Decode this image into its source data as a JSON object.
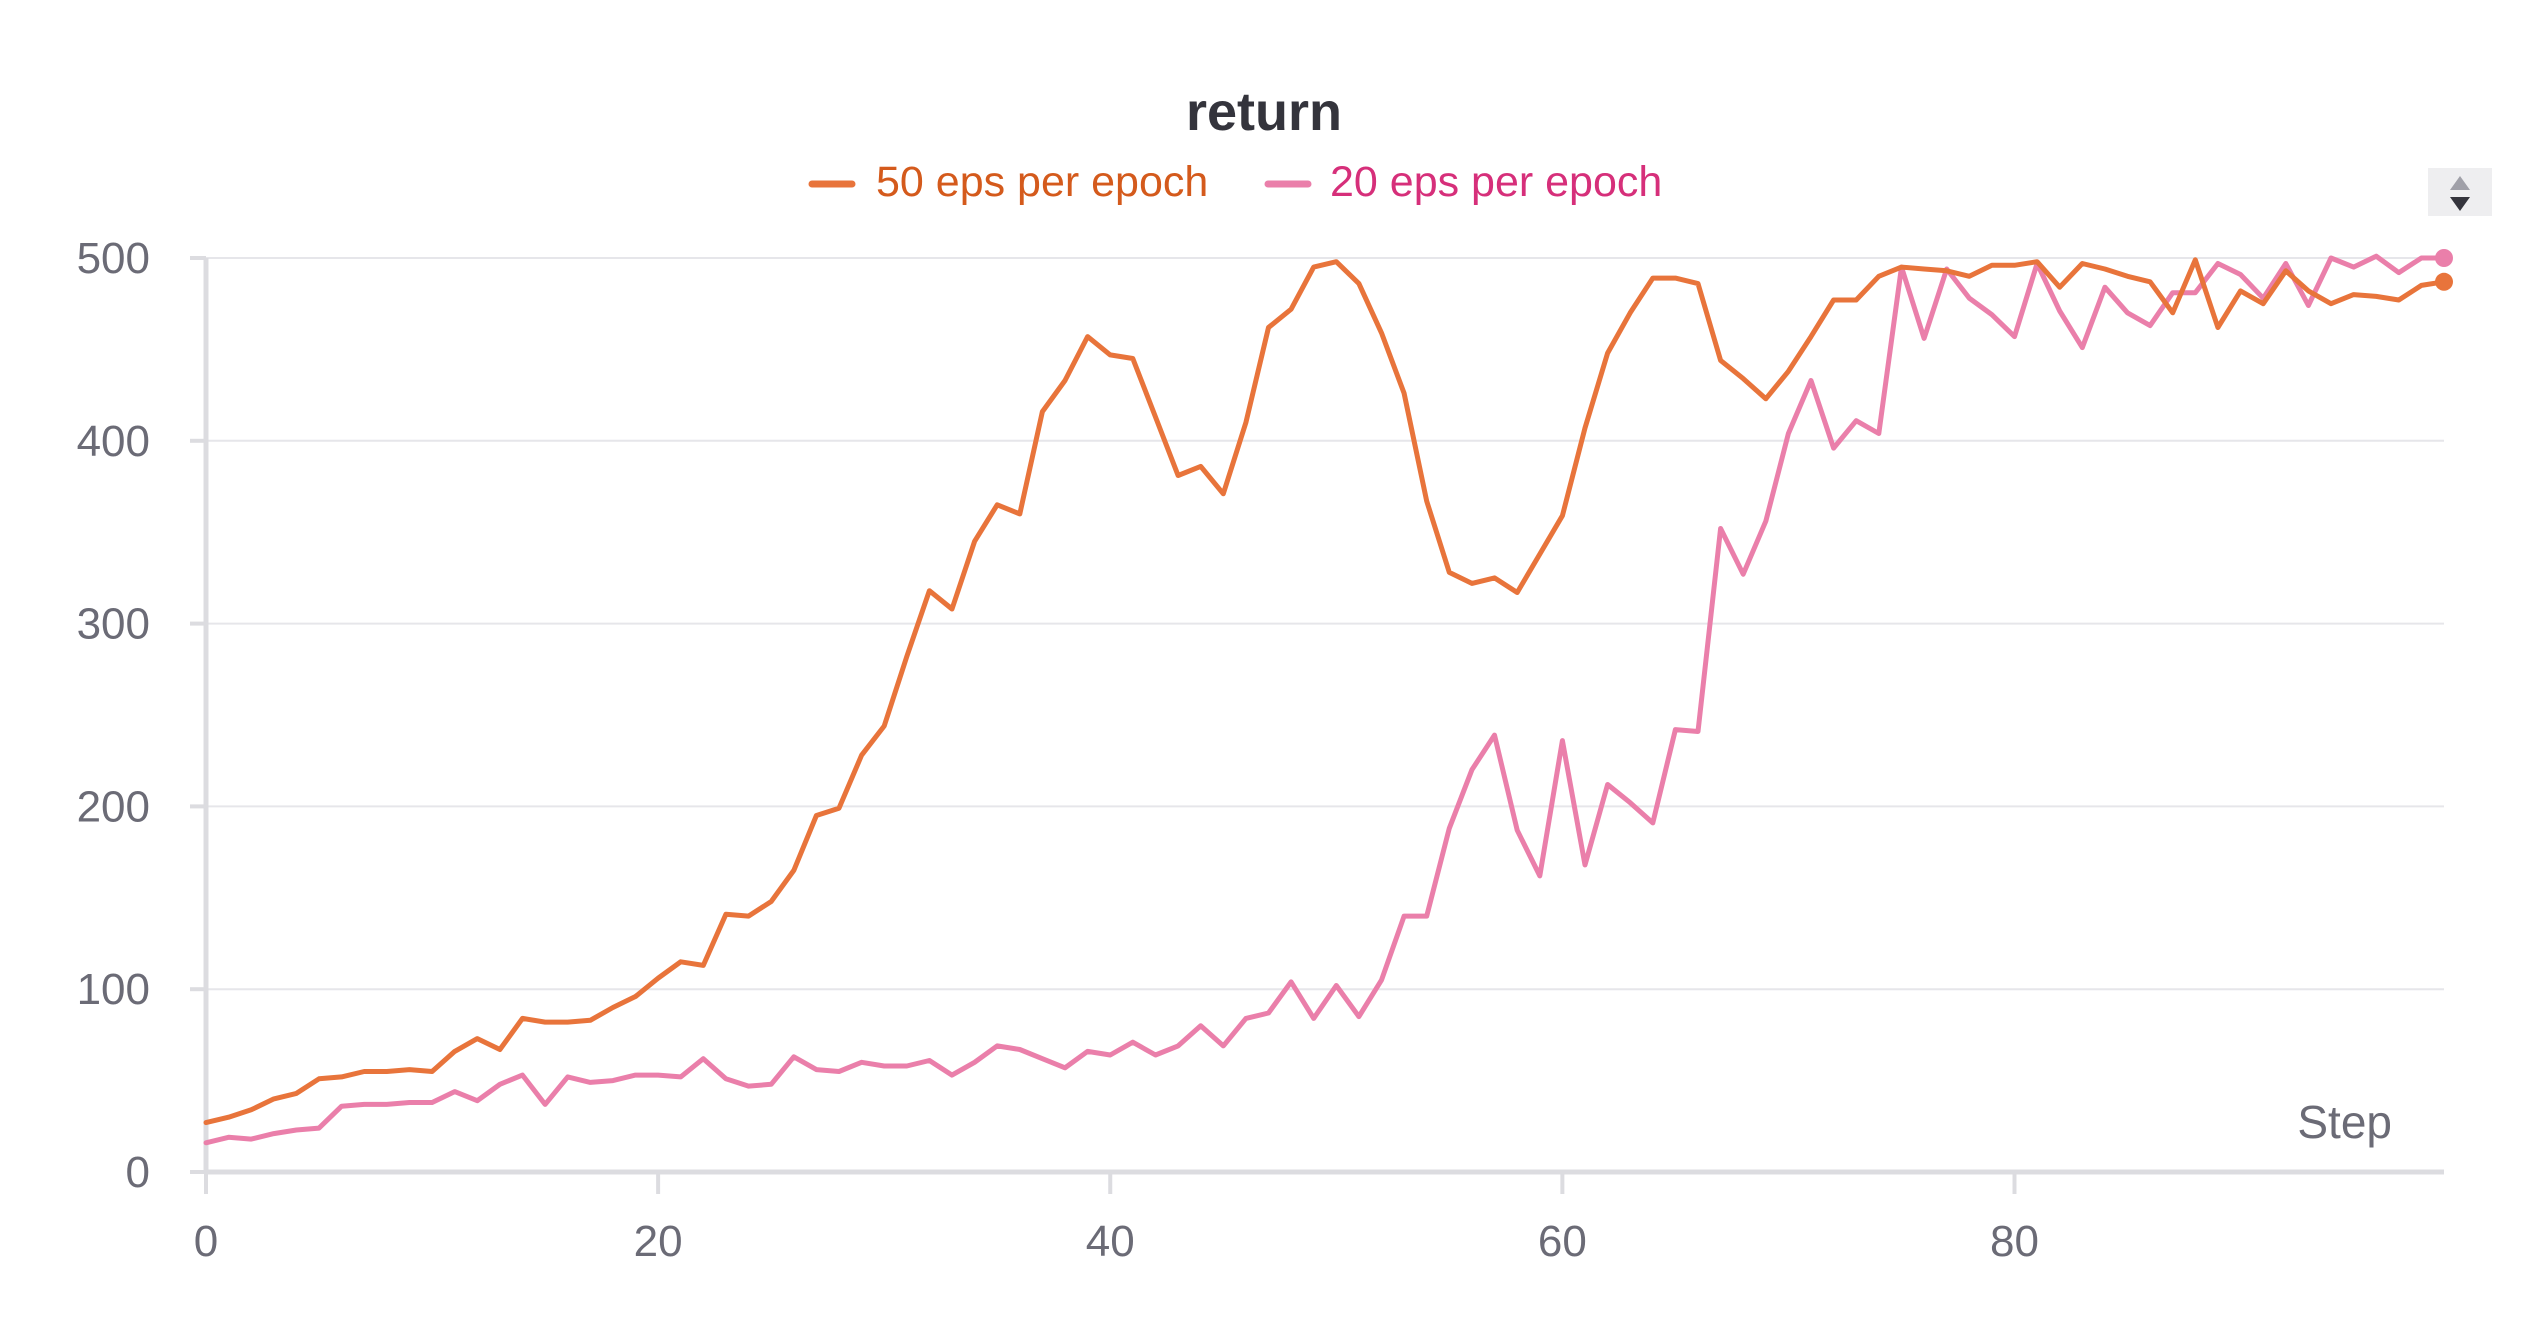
{
  "chart_data": {
    "type": "line",
    "title": "return",
    "xlabel": "Step",
    "ylabel": "",
    "xlim": [
      0,
      99
    ],
    "ylim": [
      0,
      500
    ],
    "xticks": [
      0,
      20,
      40,
      60,
      80
    ],
    "yticks": [
      0,
      100,
      200,
      300,
      400,
      500
    ],
    "grid": true,
    "legend_position": "top-center",
    "series": [
      {
        "name": "50 eps per epoch",
        "color": "#e8743b",
        "legend_text_color": "#d45a1c",
        "x": [
          0,
          1,
          2,
          3,
          4,
          5,
          6,
          7,
          8,
          9,
          10,
          11,
          12,
          13,
          14,
          15,
          16,
          17,
          18,
          19,
          20,
          21,
          22,
          23,
          24,
          25,
          26,
          27,
          28,
          29,
          30,
          31,
          32,
          33,
          34,
          35,
          36,
          37,
          38,
          39,
          40,
          41,
          42,
          43,
          44,
          45,
          46,
          47,
          48,
          49,
          50,
          51,
          52,
          53,
          54,
          55,
          56,
          57,
          58,
          59,
          60,
          61,
          62,
          63,
          64,
          65,
          66,
          67,
          68,
          69,
          70,
          71,
          72,
          73,
          74,
          75,
          76,
          77,
          78,
          79,
          80,
          81,
          82,
          83,
          84,
          85,
          86,
          87,
          88,
          89,
          90,
          91,
          92,
          93,
          94,
          95,
          96,
          97,
          98,
          99
        ],
        "values": [
          27,
          30,
          34,
          40,
          43,
          51,
          52,
          55,
          55,
          56,
          55,
          66,
          73,
          67,
          84,
          82,
          82,
          83,
          90,
          96,
          106,
          115,
          113,
          141,
          140,
          148,
          165,
          195,
          199,
          228,
          244,
          282,
          318,
          308,
          345,
          365,
          360,
          416,
          433,
          457,
          447,
          445,
          413,
          381,
          386,
          371,
          410,
          462,
          472,
          495,
          498,
          486,
          459,
          426,
          367,
          328,
          322,
          325,
          317,
          338,
          359,
          407,
          448,
          470,
          489,
          489,
          486,
          444,
          434,
          423,
          438,
          457,
          477,
          477,
          490,
          495,
          494,
          493,
          490,
          496,
          496,
          498,
          484,
          497,
          494,
          490,
          487,
          470,
          499,
          462,
          482,
          475,
          493,
          482,
          475,
          480,
          479,
          477,
          485,
          487
        ]
      },
      {
        "name": "20 eps per epoch",
        "color": "#ea7faa",
        "legend_text_color": "#d62f7a",
        "x": [
          0,
          1,
          2,
          3,
          4,
          5,
          6,
          7,
          8,
          9,
          10,
          11,
          12,
          13,
          14,
          15,
          16,
          17,
          18,
          19,
          20,
          21,
          22,
          23,
          24,
          25,
          26,
          27,
          28,
          29,
          30,
          31,
          32,
          33,
          34,
          35,
          36,
          37,
          38,
          39,
          40,
          41,
          42,
          43,
          44,
          45,
          46,
          47,
          48,
          49,
          50,
          51,
          52,
          53,
          54,
          55,
          56,
          57,
          58,
          59,
          60,
          61,
          62,
          63,
          64,
          65,
          66,
          67,
          68,
          69,
          70,
          71,
          72,
          73,
          74,
          75,
          76,
          77,
          78,
          79,
          80,
          81,
          82,
          83,
          84,
          85,
          86,
          87,
          88,
          89,
          90,
          91,
          92,
          93,
          94,
          95,
          96,
          97,
          98,
          99
        ],
        "values": [
          16,
          19,
          18,
          21,
          23,
          24,
          36,
          37,
          37,
          38,
          38,
          44,
          39,
          48,
          53,
          37,
          52,
          49,
          50,
          53,
          53,
          52,
          62,
          51,
          47,
          48,
          63,
          56,
          55,
          60,
          58,
          58,
          61,
          53,
          60,
          69,
          67,
          62,
          57,
          66,
          64,
          71,
          64,
          69,
          80,
          69,
          84,
          87,
          104,
          84,
          102,
          85,
          105,
          140,
          140,
          188,
          220,
          239,
          187,
          162,
          236,
          168,
          212,
          202,
          191,
          242,
          241,
          352,
          327,
          356,
          404,
          433,
          396,
          411,
          404,
          495,
          456,
          494,
          478,
          469,
          457,
          497,
          471,
          451,
          484,
          470,
          463,
          481,
          481,
          497,
          491,
          478,
          497,
          474,
          500,
          495,
          501,
          492,
          500,
          500
        ]
      }
    ]
  }
}
